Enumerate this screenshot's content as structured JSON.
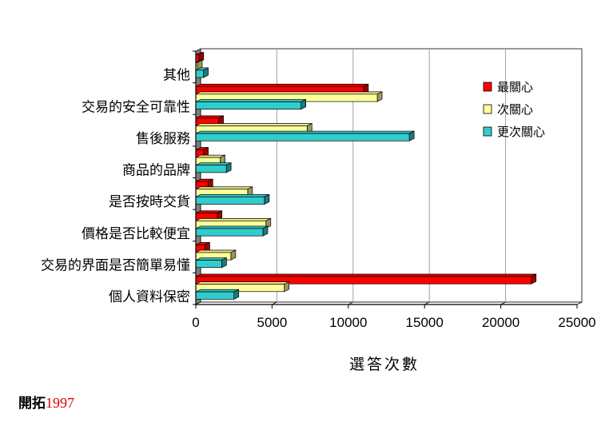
{
  "chart_data": {
    "type": "bar",
    "orientation": "horizontal",
    "categories": [
      "其他",
      "交易的安全可靠性",
      "售後服務",
      "商品的品牌",
      "是否按時交貨",
      "價格是否比較便宜",
      "交易的界面是否簡單易懂",
      "個人資料保密"
    ],
    "series": [
      {
        "name": "最關心",
        "color": "#ff0000",
        "values": [
          200,
          11000,
          1500,
          500,
          800,
          1400,
          600,
          22000
        ]
      },
      {
        "name": "次關心",
        "color": "#ffff99",
        "values": [
          100,
          11900,
          7300,
          1600,
          3400,
          4600,
          2300,
          5800
        ]
      },
      {
        "name": "更次關心",
        "color": "#33cccc",
        "values": [
          500,
          6900,
          14000,
          2000,
          4500,
          4400,
          1700,
          2500
        ]
      }
    ],
    "xlabel": "選答次數",
    "ylabel": "",
    "xlim": [
      0,
      25000
    ],
    "xticks": [
      "0",
      "5000",
      "10000",
      "15000",
      "20000",
      "25000"
    ],
    "grid": true,
    "legend_position": "top-right"
  },
  "footer": {
    "label": "開拓",
    "year": "1997"
  }
}
